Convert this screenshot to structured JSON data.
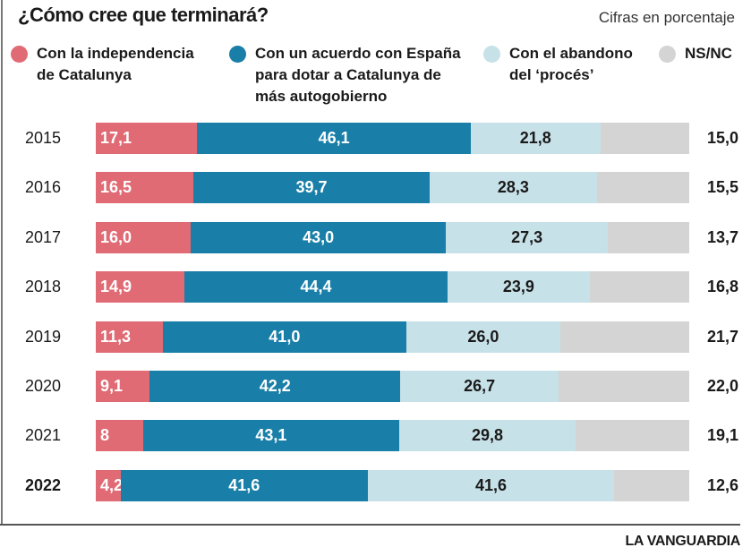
{
  "chart_data": {
    "type": "bar",
    "stacked": true,
    "orientation": "horizontal",
    "title": "¿Cómo cree que terminará?",
    "subtitle": "Cifras en porcentaje",
    "categories": [
      "2015",
      "2016",
      "2017",
      "2018",
      "2019",
      "2020",
      "2021",
      "2022"
    ],
    "series": [
      {
        "name": "Con la independencia de Catalunya",
        "color": "#e06b75",
        "values": [
          17.1,
          16.5,
          16.0,
          14.9,
          11.3,
          9.1,
          8,
          4.2
        ],
        "labels": [
          "17,1",
          "16,5",
          "16,0",
          "14,9",
          "11,3",
          "9,1",
          "8",
          "4,2"
        ]
      },
      {
        "name": "Con un acuerdo con España para dotar a Catalunya de más autogobierno",
        "color": "#1a7fa8",
        "values": [
          46.1,
          39.7,
          43.0,
          44.4,
          41.0,
          42.2,
          43.1,
          41.6
        ],
        "labels": [
          "46,1",
          "39,7",
          "43,0",
          "44,4",
          "41,0",
          "42,2",
          "43,1",
          "41,6"
        ]
      },
      {
        "name": "Con el abandono del ‘procés’",
        "color": "#c7e1e8",
        "values": [
          21.8,
          28.3,
          27.3,
          23.9,
          26.0,
          26.7,
          29.8,
          41.6
        ],
        "labels": [
          "21,8",
          "28,3",
          "27,3",
          "23,9",
          "26,0",
          "26,7",
          "29,8",
          "41,6"
        ]
      },
      {
        "name": "NS/NC",
        "color": "#d4d4d4",
        "values": [
          15.0,
          15.5,
          13.7,
          16.8,
          21.7,
          22.0,
          19.1,
          12.6
        ],
        "labels": [
          "15,0",
          "15,5",
          "13,7",
          "16,8",
          "21,7",
          "22,0",
          "19,1",
          "12,6"
        ]
      }
    ],
    "legend_position": "top",
    "grid": false,
    "xlim": [
      0,
      100
    ]
  },
  "source": "LA VANGUARDIA"
}
